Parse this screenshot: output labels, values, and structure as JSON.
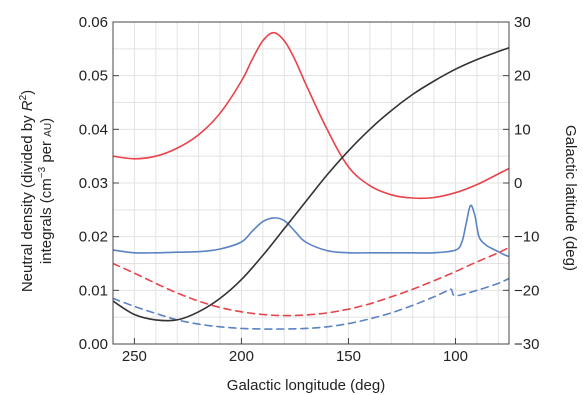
{
  "chart_data": {
    "type": "line",
    "xlabel": "Galactic longitude (deg)",
    "ylabel_left_line1_a": "Neutral density (divided by ",
    "ylabel_left_line1_var": "R",
    "ylabel_left_line1_sup": "2",
    "ylabel_left_line1_b": ")",
    "ylabel_left_line2_a": "integrals (cm",
    "ylabel_left_line2_sup": "−3",
    "ylabel_left_line2_b": " per ",
    "ylabel_left_line2_unit": "AU",
    "ylabel_left_line2_c": ")",
    "ylabel_right": "Galactic latitude (deg)",
    "xlim": [
      260,
      75
    ],
    "ylim_left": [
      0,
      0.06
    ],
    "ylim_right": [
      -30,
      30
    ],
    "x_ticks": [
      250,
      200,
      150,
      100
    ],
    "x_tick_labels": [
      "250",
      "200",
      "150",
      "100"
    ],
    "y_left_ticks": [
      0,
      0.01,
      0.02,
      0.03,
      0.04,
      0.05,
      0.06
    ],
    "y_left_tick_labels": [
      "0.00",
      "0.01",
      "0.02",
      "0.03",
      "0.04",
      "0.05",
      "0.06"
    ],
    "y_right_ticks": [
      -30,
      -20,
      -10,
      0,
      10,
      20,
      30
    ],
    "y_right_tick_labels": [
      "−30",
      "−20",
      "−10",
      "0",
      "10",
      "20",
      "30"
    ],
    "grid": true,
    "series": [
      {
        "axis": "left",
        "color": "#e8434a",
        "style": "solid",
        "x": [
          260,
          250,
          240,
          230,
          220,
          210,
          200,
          195,
          190,
          185,
          180,
          175,
          170,
          160,
          150,
          140,
          130,
          120,
          110,
          100,
          90,
          80,
          75
        ],
        "y": [
          0.035,
          0.0345,
          0.035,
          0.0365,
          0.039,
          0.043,
          0.049,
          0.053,
          0.0565,
          0.058,
          0.0565,
          0.053,
          0.0485,
          0.04,
          0.033,
          0.0295,
          0.0278,
          0.0272,
          0.0273,
          0.0282,
          0.0297,
          0.0317,
          0.0327
        ]
      },
      {
        "axis": "left",
        "color": "#5b83c4",
        "style": "solid",
        "x": [
          260,
          250,
          240,
          230,
          220,
          210,
          200,
          195,
          190,
          185,
          180,
          175,
          170,
          160,
          150,
          140,
          130,
          120,
          110,
          100,
          97,
          95,
          93,
          91,
          89,
          86,
          83,
          80,
          77,
          75
        ],
        "y": [
          0.0175,
          0.017,
          0.017,
          0.0171,
          0.0172,
          0.0177,
          0.019,
          0.021,
          0.0228,
          0.0235,
          0.023,
          0.021,
          0.019,
          0.0174,
          0.017,
          0.017,
          0.017,
          0.017,
          0.017,
          0.0175,
          0.019,
          0.0225,
          0.0258,
          0.024,
          0.02,
          0.0185,
          0.0178,
          0.0172,
          0.0166,
          0.0163
        ]
      },
      {
        "axis": "left",
        "color": "#e8434a",
        "style": "dashed",
        "x": [
          260,
          250,
          240,
          230,
          220,
          210,
          200,
          190,
          180,
          170,
          160,
          150,
          140,
          130,
          120,
          110,
          100,
          90,
          80,
          75
        ],
        "y": [
          0.015,
          0.0132,
          0.0113,
          0.0095,
          0.008,
          0.0068,
          0.006,
          0.0055,
          0.0053,
          0.0054,
          0.0058,
          0.0065,
          0.0075,
          0.0088,
          0.0102,
          0.0118,
          0.0135,
          0.0153,
          0.017,
          0.018
        ]
      },
      {
        "axis": "left",
        "color": "#5b83c4",
        "style": "dashed",
        "x": [
          260,
          250,
          240,
          230,
          220,
          210,
          200,
          190,
          180,
          170,
          160,
          150,
          140,
          130,
          120,
          110,
          105,
          102,
          100,
          90,
          80,
          75
        ],
        "y": [
          0.0085,
          0.007,
          0.0057,
          0.0045,
          0.0037,
          0.0032,
          0.0029,
          0.0028,
          0.0028,
          0.0029,
          0.0032,
          0.0038,
          0.0047,
          0.0058,
          0.0072,
          0.0088,
          0.0097,
          0.0102,
          0.009,
          0.01,
          0.0113,
          0.0122
        ]
      },
      {
        "axis": "right",
        "color": "#333333",
        "style": "solid",
        "x": [
          260,
          250,
          240,
          230,
          220,
          210,
          200,
          190,
          180,
          170,
          160,
          150,
          140,
          130,
          120,
          110,
          100,
          90,
          80,
          75
        ],
        "y": [
          -22.0,
          -24.5,
          -25.5,
          -25.5,
          -24.0,
          -21.5,
          -18.0,
          -13.5,
          -8.5,
          -3.5,
          1.5,
          6.0,
          10.0,
          13.5,
          16.5,
          19.0,
          21.2,
          23.0,
          24.5,
          25.2
        ]
      }
    ]
  }
}
